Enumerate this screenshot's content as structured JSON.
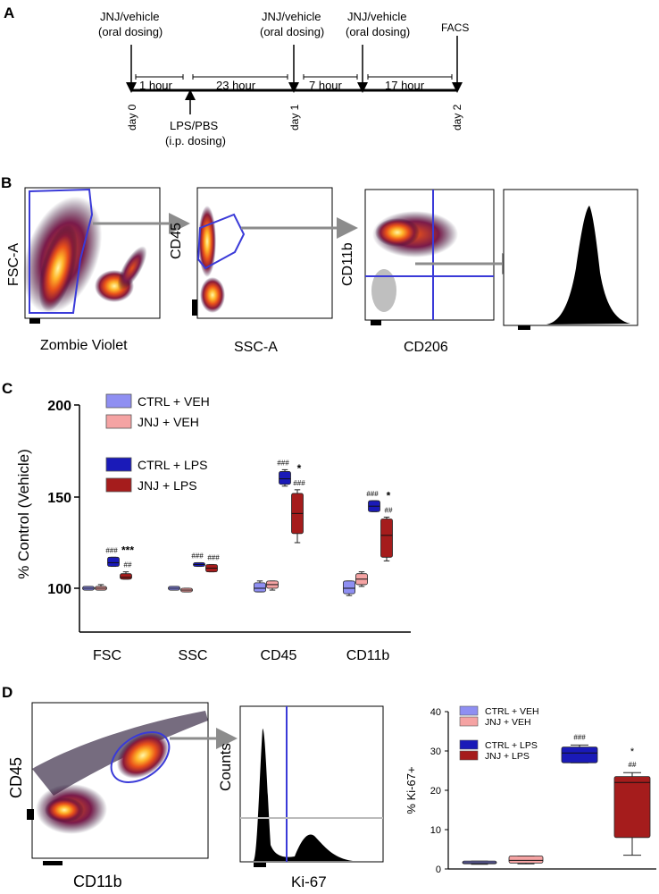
{
  "panel_labels": {
    "a": "A",
    "b": "B",
    "c": "C",
    "d": "D"
  },
  "timeline": {
    "dose_line1": "JNJ/vehicle",
    "dose_line2": "(oral dosing)",
    "lps_line1": "LPS/PBS",
    "lps_line2": "(i.p. dosing)",
    "facs": "FACS",
    "intervals": [
      "1 hour",
      "23 hour",
      "7 hour",
      "17 hour"
    ],
    "days": [
      "day 0",
      "day 1",
      "day 2"
    ]
  },
  "panel_b": {
    "plot1": {
      "ylabel": "FSC-A",
      "xlabel": "Zombie Violet"
    },
    "plot2": {
      "ylabel": "CD45",
      "xlabel": "SSC-A"
    },
    "plot3": {
      "ylabel": "CD11b",
      "xlabel": "CD206"
    }
  },
  "colors": {
    "ctrl_veh": "#8f8ff2",
    "jnj_veh": "#f5a3a3",
    "ctrl_lps": "#1a1ab8",
    "jnj_lps": "#a51c1c",
    "gate": "#3a3ad8",
    "arrow": "#8c8c8c"
  },
  "chart_data": [
    {
      "id": "panel-c",
      "type": "box",
      "ylabel": "% Control (Vehicle)",
      "ylim": [
        88,
        200
      ],
      "yticks": [
        "100",
        "150",
        "200"
      ],
      "categories": [
        "FSC",
        "SSC",
        "CD45",
        "CD11b"
      ],
      "legend": [
        "CTRL + VEH",
        "JNJ + VEH",
        "CTRL + LPS",
        "JNJ + LPS"
      ],
      "series": [
        {
          "name": "CTRL + VEH",
          "boxes": [
            {
              "min": 99,
              "q1": 99,
              "med": 100,
              "q3": 101,
              "max": 101
            },
            {
              "min": 99,
              "q1": 99,
              "med": 100,
              "q3": 101,
              "max": 101
            },
            {
              "min": 98,
              "q1": 98,
              "med": 100,
              "q3": 103,
              "max": 104
            },
            {
              "min": 96,
              "q1": 97,
              "med": 100,
              "q3": 104,
              "max": 104
            }
          ]
        },
        {
          "name": "JNJ + VEH",
          "boxes": [
            {
              "min": 99,
              "q1": 99,
              "med": 100,
              "q3": 101,
              "max": 102
            },
            {
              "min": 98,
              "q1": 98,
              "med": 99,
              "q3": 100,
              "max": 100
            },
            {
              "min": 99,
              "q1": 100,
              "med": 102,
              "q3": 104,
              "max": 104
            },
            {
              "min": 101,
              "q1": 102,
              "med": 105,
              "q3": 108,
              "max": 109
            }
          ]
        },
        {
          "name": "CTRL + LPS",
          "boxes": [
            {
              "min": 112,
              "q1": 112,
              "med": 114,
              "q3": 117,
              "max": 117
            },
            {
              "min": 112,
              "q1": 112,
              "med": 113,
              "q3": 114,
              "max": 114
            },
            {
              "min": 156,
              "q1": 157,
              "med": 160,
              "q3": 164,
              "max": 165
            },
            {
              "min": 142,
              "q1": 142,
              "med": 145,
              "q3": 148,
              "max": 148
            }
          ]
        },
        {
          "name": "JNJ + LPS",
          "boxes": [
            {
              "min": 105,
              "q1": 105,
              "med": 106,
              "q3": 108,
              "max": 109
            },
            {
              "min": 109,
              "q1": 109,
              "med": 111,
              "q3": 113,
              "max": 113
            },
            {
              "min": 125,
              "q1": 130,
              "med": 141,
              "q3": 152,
              "max": 154
            },
            {
              "min": 115,
              "q1": 117,
              "med": 129,
              "q3": 138,
              "max": 139
            }
          ]
        }
      ],
      "annotations": [
        {
          "cat": 0,
          "series": 2,
          "text": "###"
        },
        {
          "cat": 0,
          "series": 3,
          "text": "##"
        },
        {
          "cat": 0,
          "series": 3,
          "text": "***",
          "above": true
        },
        {
          "cat": 1,
          "series": 2,
          "text": "###"
        },
        {
          "cat": 1,
          "series": 3,
          "text": "###"
        },
        {
          "cat": 2,
          "series": 2,
          "text": "###"
        },
        {
          "cat": 2,
          "series": 3,
          "text": "###"
        },
        {
          "cat": 2,
          "series": 3,
          "text": "*",
          "above": true
        },
        {
          "cat": 3,
          "series": 2,
          "text": "###"
        },
        {
          "cat": 3,
          "series": 3,
          "text": "##"
        },
        {
          "cat": 3,
          "series": 3,
          "text": "*",
          "above": true
        }
      ]
    },
    {
      "id": "panel-d",
      "type": "box",
      "ylabel": "% Ki-67+",
      "ylim": [
        0,
        40
      ],
      "yticks": [
        "0",
        "10",
        "20",
        "30",
        "40"
      ],
      "legend": [
        "CTRL + VEH",
        "JNJ + VEH",
        "CTRL + LPS",
        "JNJ + LPS"
      ],
      "boxes": [
        {
          "name": "CTRL + VEH",
          "min": 1.2,
          "q1": 1.3,
          "med": 1.6,
          "q3": 2.0,
          "max": 2.0
        },
        {
          "name": "JNJ + VEH",
          "min": 1.3,
          "q1": 1.5,
          "med": 2.2,
          "q3": 3.3,
          "max": 3.3
        },
        {
          "name": "CTRL + LPS",
          "min": 27,
          "q1": 27,
          "med": 29.5,
          "q3": 31,
          "max": 31.5
        },
        {
          "name": "JNJ + LPS",
          "min": 3.5,
          "q1": 8,
          "med": 22,
          "q3": 23.5,
          "max": 24.5
        }
      ],
      "annotations": [
        {
          "box": 2,
          "text": "###"
        },
        {
          "box": 3,
          "text": "##"
        },
        {
          "box": 3,
          "text": "*",
          "above": true
        }
      ]
    }
  ],
  "panel_d": {
    "plot1": {
      "ylabel": "CD45",
      "xlabel": "CD11b"
    },
    "plot2": {
      "ylabel": "Counts",
      "xlabel": "Ki-67"
    }
  }
}
